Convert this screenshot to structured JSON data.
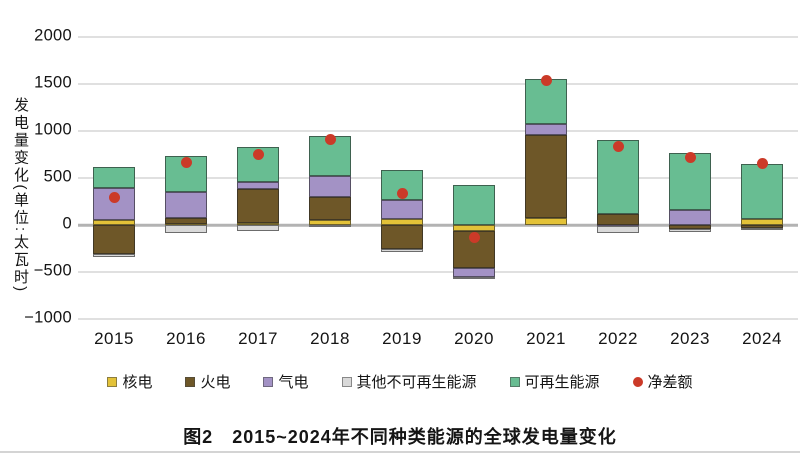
{
  "caption": "图2　2015~2024年不同种类能源的全球发电量变化",
  "y_axis": {
    "title": "发电量变化(单位:太瓦时)",
    "ticks": [
      {
        "label": "2000",
        "value": 2000
      },
      {
        "label": "1500",
        "value": 1500
      },
      {
        "label": "1000",
        "value": 1000
      },
      {
        "label": "500",
        "value": 500
      },
      {
        "label": "0",
        "value": 0
      },
      {
        "label": "−500",
        "value": -500
      },
      {
        "label": "−1000",
        "value": -1000
      }
    ]
  },
  "chart_data": {
    "type": "bar",
    "subtype": "stacked-bars-with-net-scatter",
    "title": "图2　2015~2024年不同种类能源的全球发电量变化",
    "ylabel": "发电量变化(单位:太瓦时)",
    "xlabel": "",
    "ylim": [
      -1000,
      2000
    ],
    "grid": true,
    "legend_position": "bottom",
    "categories": [
      "2015",
      "2016",
      "2017",
      "2018",
      "2019",
      "2020",
      "2021",
      "2022",
      "2023",
      "2024"
    ],
    "series": [
      {
        "id": "nuclear",
        "name": "核电",
        "color": "#e3c238",
        "values": [
          50,
          15,
          20,
          50,
          60,
          -60,
          70,
          0,
          0,
          60
        ]
      },
      {
        "id": "thermal",
        "name": "火电",
        "color": "#6e5728",
        "values": [
          -310,
          60,
          360,
          250,
          -250,
          -400,
          890,
          120,
          -40,
          -30
        ]
      },
      {
        "id": "gas",
        "name": "气电",
        "color": "#a392c5",
        "values": [
          340,
          275,
          80,
          225,
          210,
          -90,
          110,
          -15,
          160,
          0
        ]
      },
      {
        "id": "other",
        "name": "其他不可再生能源",
        "color": "#d9d9d9",
        "values": [
          -30,
          -80,
          -60,
          -25,
          -35,
          -20,
          0,
          -75,
          -30,
          -20
        ]
      },
      {
        "id": "renewable",
        "name": "可再生能源",
        "color": "#68bd92",
        "values": [
          225,
          380,
          370,
          425,
          320,
          430,
          480,
          780,
          610,
          590
        ]
      }
    ],
    "net_series": {
      "id": "net",
      "name": "净差额",
      "color": "#cb3a28",
      "values": [
        290,
        670,
        750,
        910,
        340,
        -130,
        1540,
        840,
        720,
        650
      ]
    }
  }
}
